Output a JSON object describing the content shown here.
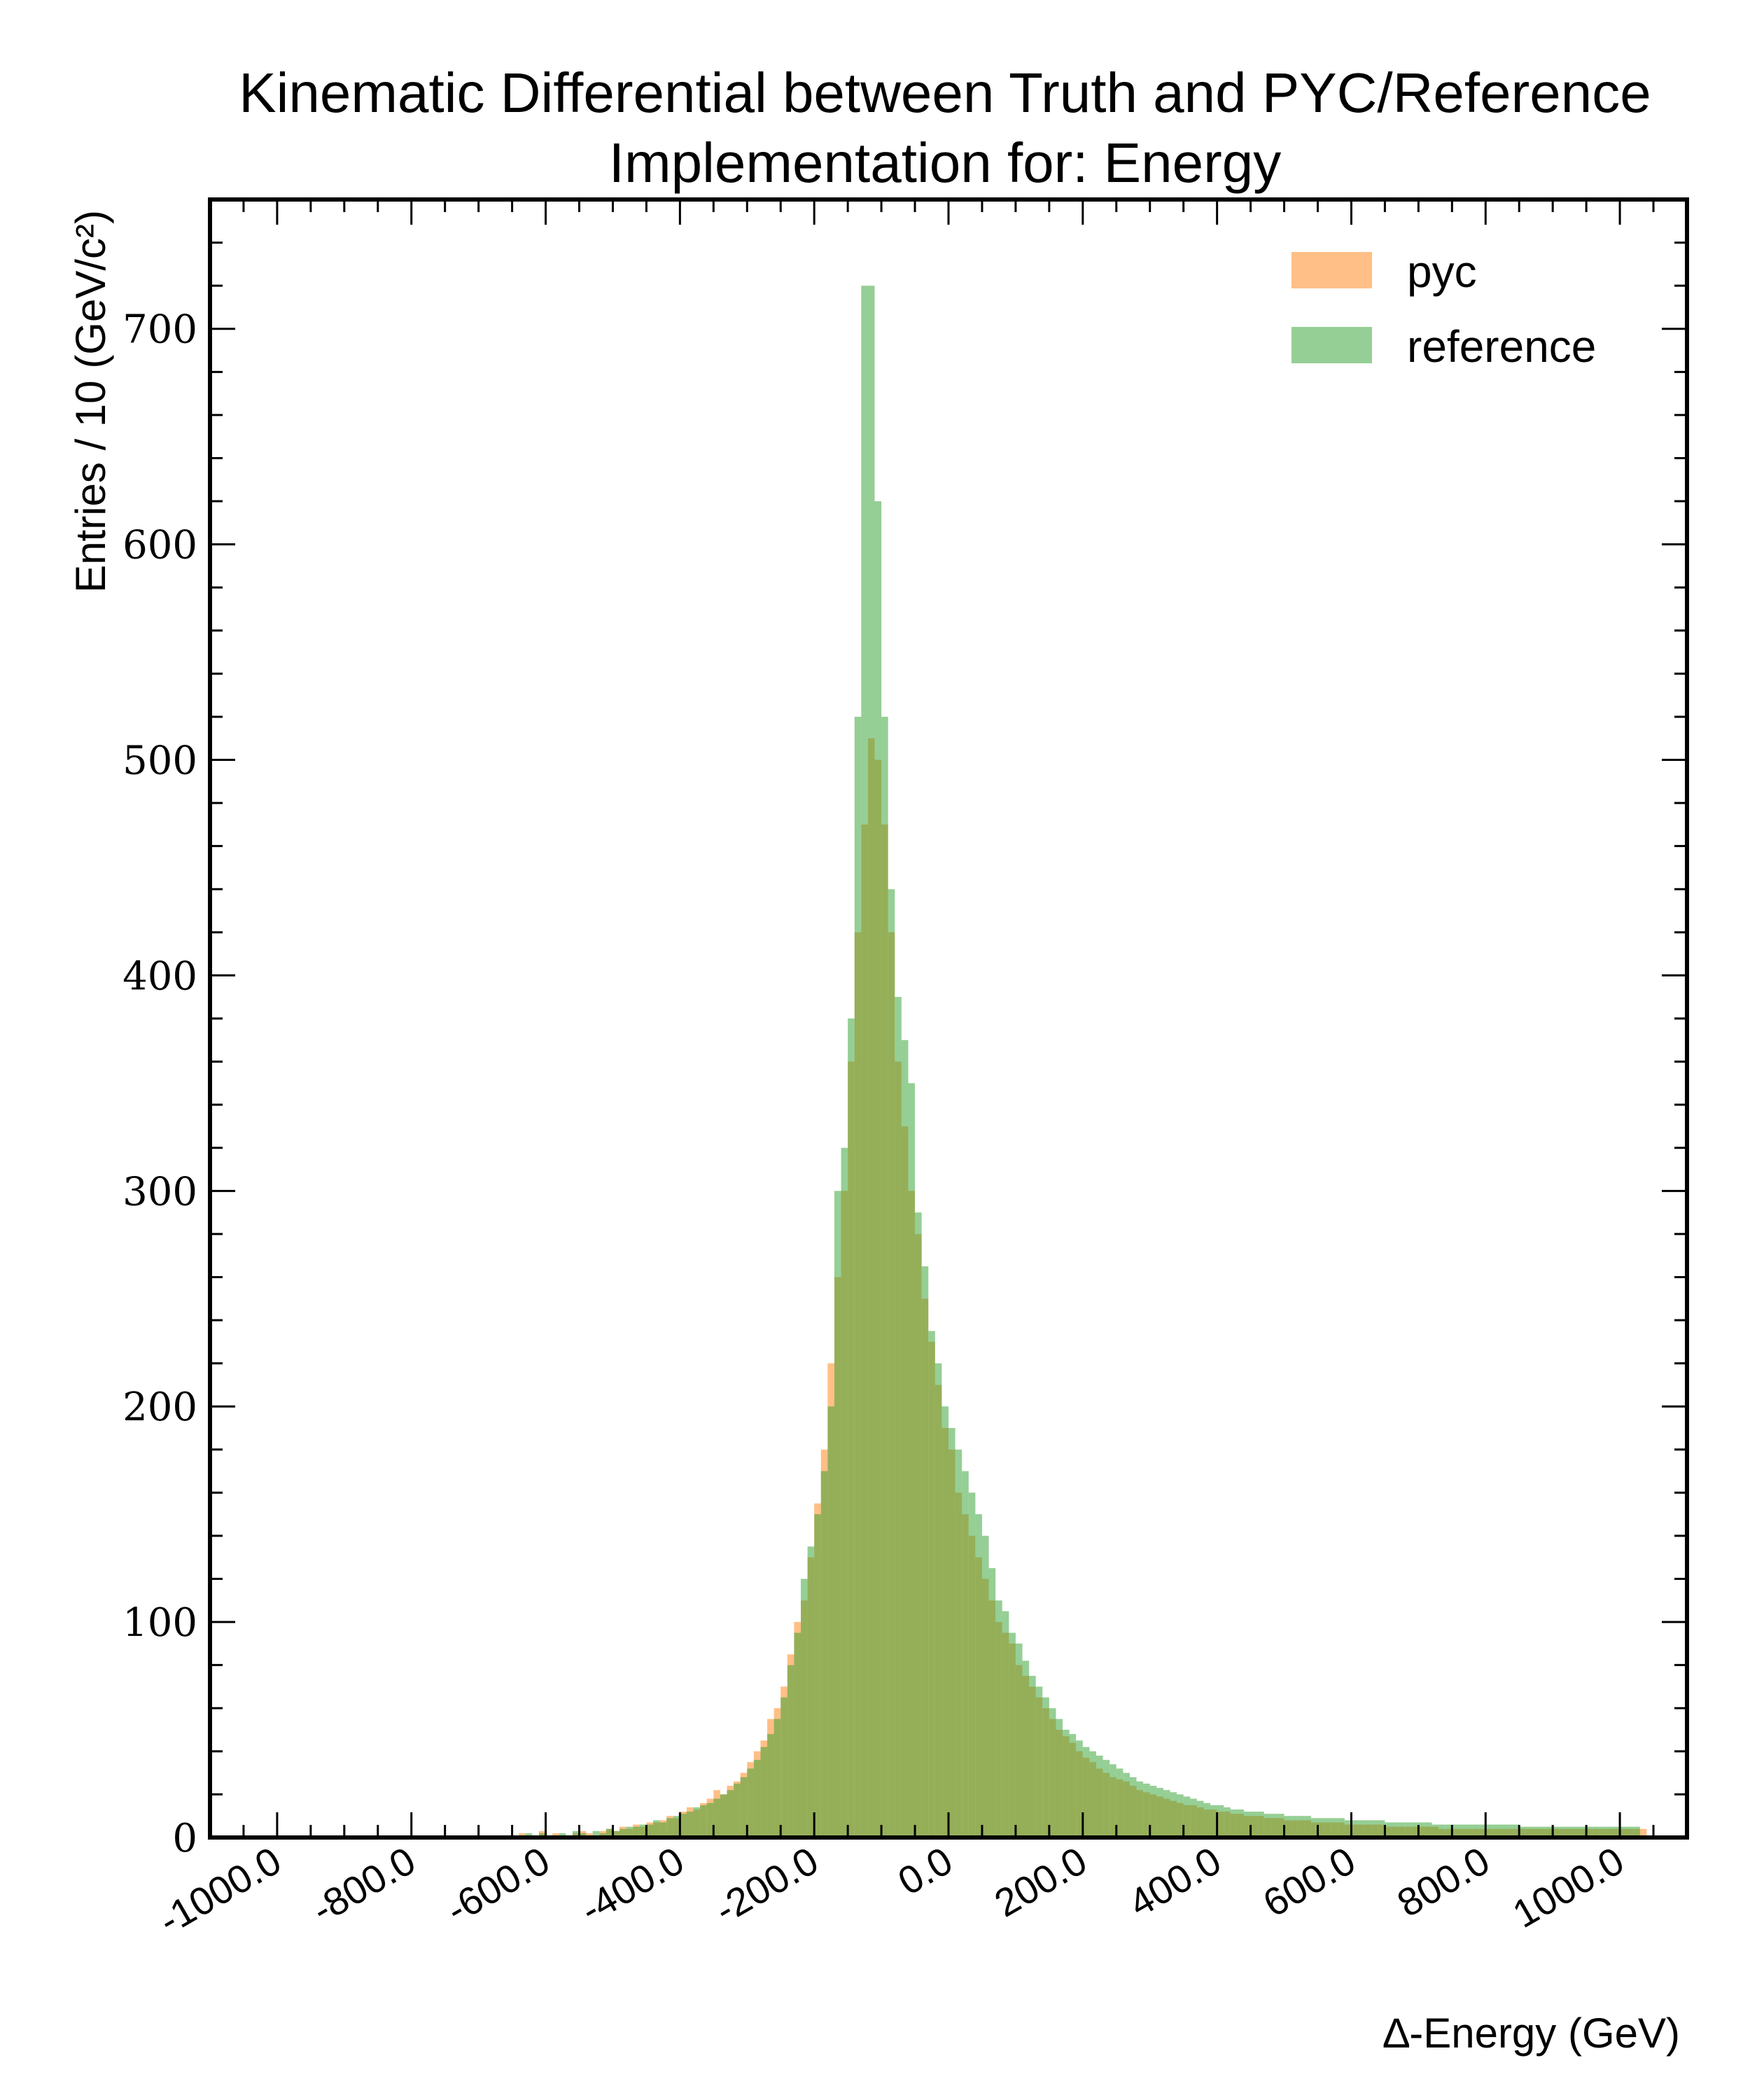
{
  "chart_data": {
    "type": "histogram",
    "title_line1": "Kinematic Differential between Truth and PYC/Reference",
    "title_line2": "Implementation for: Energy",
    "xlabel": "∆-Energy (GeV)",
    "ylabel": "Entries / 10 (GeV/c²)",
    "xlim": [
      -1100,
      1100
    ],
    "ylim": [
      0,
      760
    ],
    "x_ticks": [
      "-1000.0",
      "-800.0",
      "-600.0",
      "-400.0",
      "-200.0",
      "0.0",
      "200.0",
      "400.0",
      "600.0",
      "800.0",
      "1000.0"
    ],
    "x_tick_values": [
      -1000,
      -800,
      -600,
      -400,
      -200,
      0,
      200,
      400,
      600,
      800,
      1000
    ],
    "y_ticks": [
      "0",
      "100",
      "200",
      "300",
      "400",
      "500",
      "600",
      "700"
    ],
    "y_tick_values": [
      0,
      100,
      200,
      300,
      400,
      500,
      600,
      700
    ],
    "bin_width": 10,
    "grid": false,
    "legend_position": "top-right",
    "series": [
      {
        "name": "pyc",
        "color": "#ff7f0e",
        "opacity": 0.5,
        "x_start": -640,
        "values": [
          2,
          1,
          0,
          3,
          1,
          2,
          0,
          1,
          2,
          3,
          2,
          1,
          3,
          4,
          3,
          5,
          4,
          6,
          5,
          7,
          7,
          8,
          10,
          9,
          12,
          14,
          13,
          16,
          18,
          22,
          20,
          24,
          26,
          30,
          35,
          40,
          45,
          55,
          60,
          70,
          85,
          100,
          110,
          130,
          155,
          180,
          220,
          260,
          300,
          360,
          420,
          470,
          510,
          500,
          470,
          420,
          360,
          330,
          300,
          280,
          250,
          230,
          210,
          190,
          180,
          160,
          150,
          140,
          130,
          120,
          110,
          100,
          95,
          90,
          80,
          75,
          70,
          65,
          60,
          55,
          50,
          47,
          44,
          40,
          37,
          35,
          32,
          30,
          28,
          27,
          26,
          24,
          22,
          21,
          20,
          19,
          18,
          17,
          16,
          15,
          15,
          14,
          13,
          13,
          12,
          12,
          11,
          11,
          10,
          10,
          10,
          9,
          9,
          9,
          8,
          8,
          8,
          8,
          7,
          7,
          7,
          7,
          7,
          6,
          6,
          6,
          6,
          6,
          6,
          5,
          5,
          5,
          5,
          5,
          5,
          5,
          5,
          4,
          4,
          4,
          4,
          4,
          4,
          4,
          4,
          4,
          4,
          4,
          4,
          4,
          4,
          4,
          4,
          4,
          4,
          4,
          4,
          4,
          4,
          4,
          4,
          4,
          4,
          4,
          4,
          4,
          4,
          4
        ]
      },
      {
        "name": "reference",
        "color": "#2ca02c",
        "opacity": 0.5,
        "x_start": -640,
        "values": [
          1,
          2,
          1,
          2,
          1,
          1,
          2,
          1,
          3,
          2,
          1,
          3,
          2,
          4,
          3,
          4,
          5,
          5,
          6,
          6,
          8,
          7,
          9,
          10,
          11,
          12,
          14,
          15,
          16,
          18,
          20,
          22,
          25,
          28,
          32,
          36,
          42,
          48,
          55,
          65,
          80,
          95,
          120,
          135,
          150,
          170,
          200,
          300,
          320,
          380,
          520,
          720,
          720,
          620,
          520,
          440,
          390,
          370,
          350,
          290,
          265,
          235,
          220,
          200,
          190,
          180,
          170,
          160,
          150,
          140,
          125,
          110,
          105,
          95,
          90,
          82,
          75,
          70,
          65,
          60,
          55,
          50,
          48,
          45,
          42,
          40,
          38,
          36,
          34,
          32,
          30,
          28,
          26,
          25,
          24,
          23,
          22,
          21,
          20,
          19,
          18,
          17,
          16,
          15,
          15,
          14,
          13,
          13,
          12,
          12,
          12,
          11,
          11,
          11,
          10,
          10,
          10,
          10,
          9,
          9,
          9,
          9,
          9,
          8,
          8,
          8,
          8,
          8,
          8,
          7,
          7,
          7,
          7,
          7,
          7,
          7,
          6,
          6,
          6,
          6,
          6,
          6,
          6,
          6,
          6,
          6,
          6,
          6,
          6,
          5,
          5,
          5,
          5,
          5,
          5,
          5,
          5,
          5,
          5,
          5,
          5,
          5,
          5,
          5,
          5,
          5,
          5
        ]
      }
    ]
  }
}
